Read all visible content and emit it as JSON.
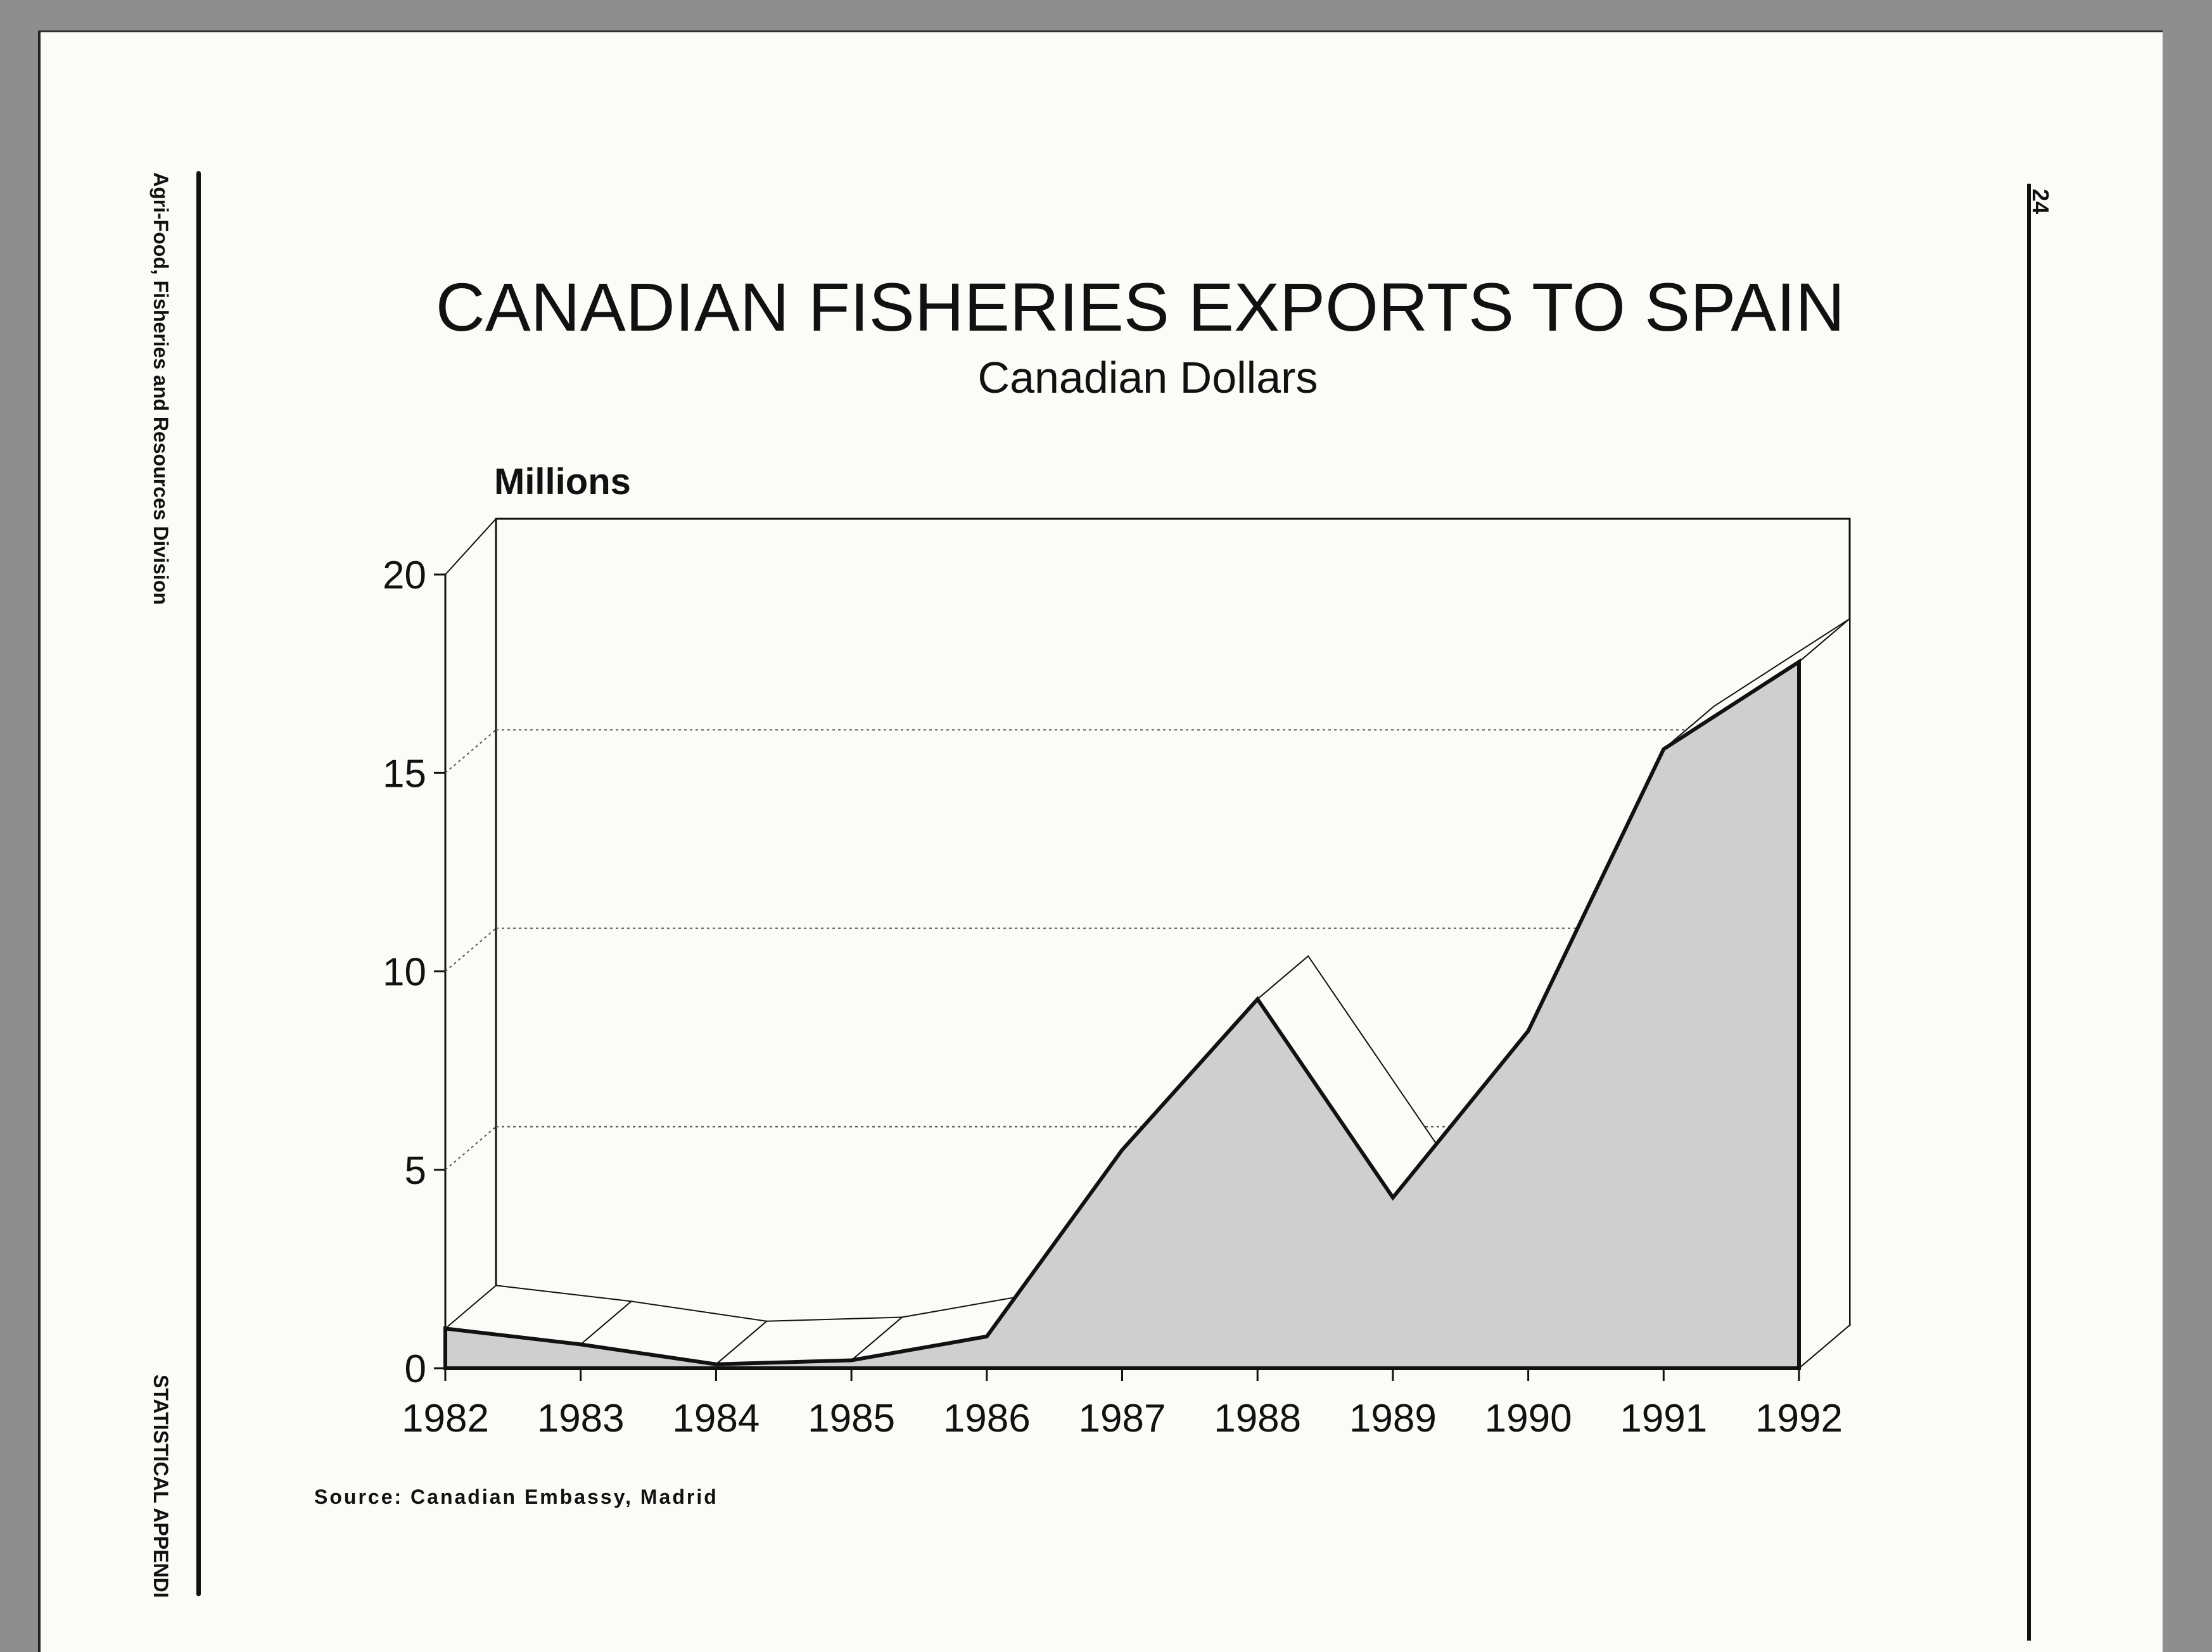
{
  "side_labels": {
    "division": "Agri-Food, Fisheries and Resources Division",
    "appendix": "STATISTICAL APPENDI"
  },
  "page_number": "24",
  "source_note": "Source: Canadian Embassy, Madrid",
  "colors": {
    "ink": "#111111",
    "area_fill": "#cfcfcf",
    "grid": "#555555"
  },
  "chart_data": {
    "type": "area",
    "title": "CANADIAN FISHERIES EXPORTS TO SPAIN",
    "subtitle": "Canadian Dollars",
    "ylabel": "Millions",
    "xlabel": "",
    "three_d": true,
    "grid": true,
    "ylim": [
      0,
      20
    ],
    "yticks": [
      0,
      5,
      10,
      15,
      20
    ],
    "categories": [
      "1982",
      "1983",
      "1984",
      "1985",
      "1986",
      "1987",
      "1988",
      "1989",
      "1990",
      "1991",
      "1992"
    ],
    "series": [
      {
        "values": [
          1.0,
          0.6,
          0.1,
          0.2,
          0.8,
          5.5,
          9.3,
          4.3,
          8.5,
          15.6,
          17.8
        ]
      }
    ]
  }
}
